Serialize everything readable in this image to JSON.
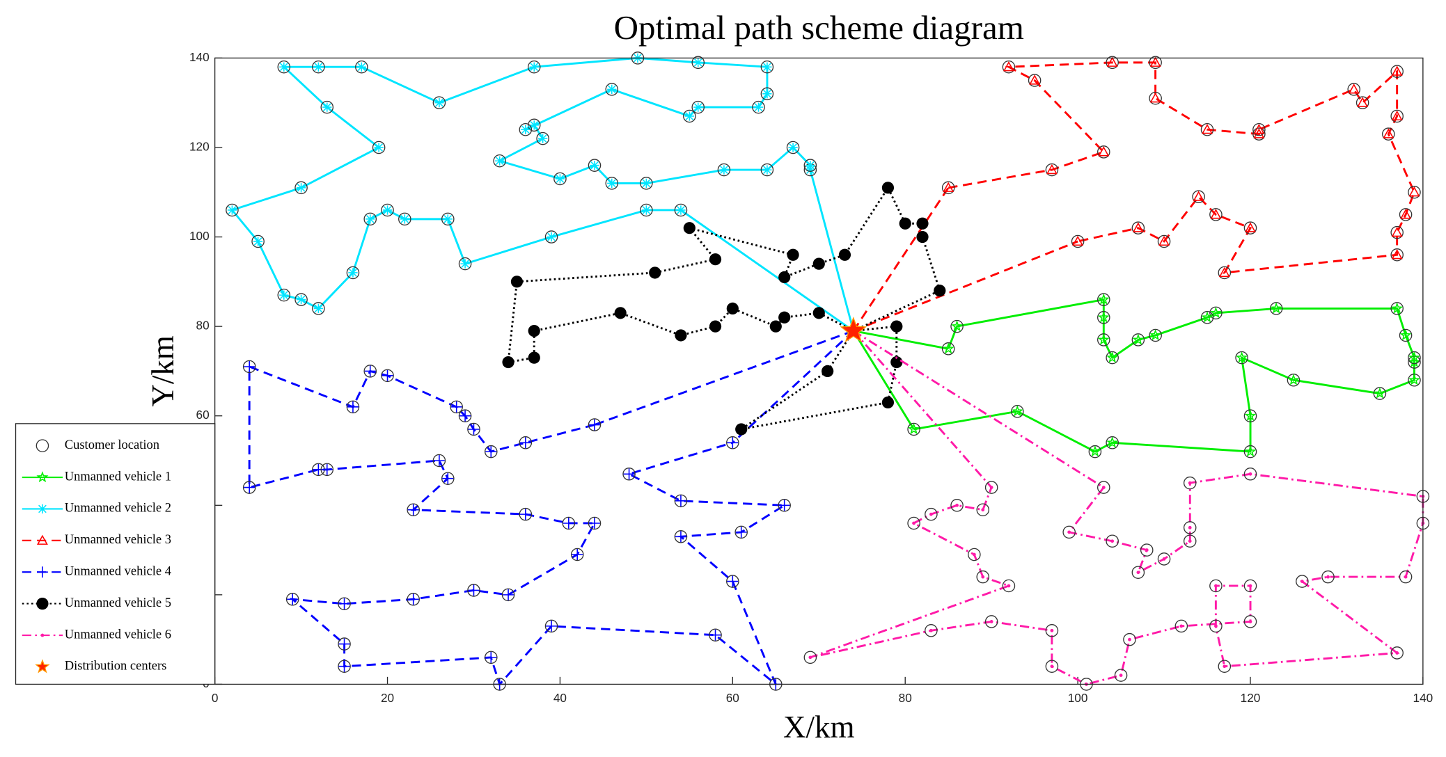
{
  "chart_data": {
    "type": "route",
    "title": "Optimal path scheme diagram",
    "xlabel": "X/km",
    "ylabel": "Y/km",
    "xlim": [
      0,
      140
    ],
    "ylim": [
      0,
      140
    ],
    "xticks": [
      0,
      20,
      40,
      60,
      80,
      100,
      120,
      140
    ],
    "yticks": [
      0,
      20,
      40,
      60,
      80,
      100,
      120,
      140
    ],
    "legend": "lower-left-outside",
    "customer_label": "Customer location",
    "depot": {
      "name": "Distribution centers",
      "x": 74,
      "y": 79,
      "color": "#ff2200"
    },
    "series": [
      {
        "name": "Unmanned vehicle 1",
        "color": "#00ee00",
        "linestyle": "solid",
        "marker": "hexagram",
        "x": [
          81,
          93,
          102,
          104,
          120,
          120,
          119,
          125,
          135,
          139,
          139,
          139,
          138,
          137,
          123,
          116,
          115,
          109,
          107,
          104,
          103,
          103,
          103,
          86,
          85
        ],
        "y": [
          57,
          61,
          52,
          54,
          52,
          60,
          73,
          68,
          65,
          68,
          72,
          73,
          78,
          84,
          84,
          83,
          82,
          78,
          77,
          73,
          77,
          82,
          86,
          80,
          75
        ]
      },
      {
        "name": "Unmanned vehicle 2",
        "color": "#00e5ff",
        "linestyle": "solid",
        "marker": "star",
        "x": [
          69,
          69,
          67,
          64,
          59,
          50,
          46,
          44,
          40,
          33,
          38,
          37,
          36,
          46,
          55,
          56,
          63,
          64,
          64,
          56,
          49,
          37,
          26,
          17,
          12,
          8,
          13,
          19,
          10,
          2,
          5,
          8,
          10,
          12,
          16,
          18,
          20,
          22,
          27,
          29,
          39,
          50,
          54
        ],
        "y": [
          115,
          116,
          120,
          115,
          115,
          112,
          112,
          116,
          113,
          117,
          122,
          125,
          124,
          133,
          127,
          129,
          129,
          132,
          138,
          139,
          140,
          138,
          130,
          138,
          138,
          138,
          129,
          120,
          111,
          106,
          99,
          87,
          86,
          84,
          92,
          104,
          106,
          104,
          104,
          94,
          100,
          106,
          106
        ]
      },
      {
        "name": "Unmanned vehicle 3",
        "color": "#ff0000",
        "linestyle": "dashed",
        "marker": "triangle",
        "x": [
          85,
          97,
          103,
          95,
          92,
          104,
          109,
          109,
          115,
          121,
          121,
          132,
          133,
          137,
          137,
          136,
          139,
          138,
          137,
          137,
          117,
          120,
          116,
          114,
          110,
          107,
          100
        ],
        "y": [
          111,
          115,
          119,
          135,
          138,
          139,
          139,
          131,
          124,
          123,
          124,
          133,
          130,
          137,
          127,
          123,
          110,
          105,
          101,
          96,
          92,
          102,
          105,
          109,
          99,
          102,
          99
        ]
      },
      {
        "name": "Unmanned vehicle 4",
        "color": "#0000ff",
        "linestyle": "dashed",
        "marker": "plus",
        "x": [
          44,
          36,
          32,
          30,
          29,
          28,
          20,
          18,
          16,
          4,
          4,
          12,
          13,
          26,
          27,
          23,
          36,
          41,
          44,
          42,
          34,
          30,
          23,
          15,
          9,
          15,
          15,
          32,
          33,
          39,
          58,
          65,
          60,
          54,
          61,
          66,
          54,
          48,
          60
        ],
        "y": [
          58,
          54,
          52,
          57,
          60,
          62,
          69,
          70,
          62,
          71,
          44,
          48,
          48,
          50,
          46,
          39,
          38,
          36,
          36,
          29,
          20,
          21,
          19,
          18,
          19,
          9,
          4,
          6,
          0,
          13,
          11,
          0,
          23,
          33,
          34,
          40,
          41,
          47,
          54
        ]
      },
      {
        "name": "Unmanned vehicle 5",
        "color": "#000000",
        "linestyle": "dotted",
        "marker": "filled-circle",
        "x": [
          84,
          82,
          82,
          80,
          78,
          73,
          70,
          66,
          67,
          55,
          58,
          51,
          35,
          34,
          37,
          37,
          47,
          54,
          58,
          60,
          65,
          66,
          70,
          null,
          71,
          61,
          78,
          79,
          79
        ],
        "y": [
          88,
          100,
          103,
          103,
          111,
          96,
          94,
          91,
          96,
          102,
          95,
          92,
          90,
          72,
          73,
          79,
          83,
          78,
          80,
          84,
          80,
          82,
          83,
          null,
          70,
          57,
          63,
          72,
          80
        ]
      },
      {
        "name": "Unmanned vehicle 6",
        "color": "#ff1aa8",
        "linestyle": "dashdot",
        "marker": "dot",
        "x": [
          103,
          99,
          104,
          108,
          107,
          110,
          113,
          113,
          113,
          120,
          140,
          140,
          138,
          129,
          126,
          137,
          117,
          116,
          116,
          120,
          120,
          112,
          106,
          105,
          101,
          97,
          97,
          90,
          83,
          69,
          92,
          89,
          88,
          81,
          83,
          86,
          89,
          90
        ],
        "y": [
          44,
          34,
          32,
          30,
          25,
          28,
          32,
          35,
          45,
          47,
          42,
          36,
          24,
          24,
          23,
          7,
          4,
          13,
          22,
          22,
          14,
          13,
          10,
          2,
          0,
          4,
          12,
          14,
          12,
          6,
          22,
          24,
          29,
          36,
          38,
          40,
          39,
          44
        ]
      }
    ]
  }
}
